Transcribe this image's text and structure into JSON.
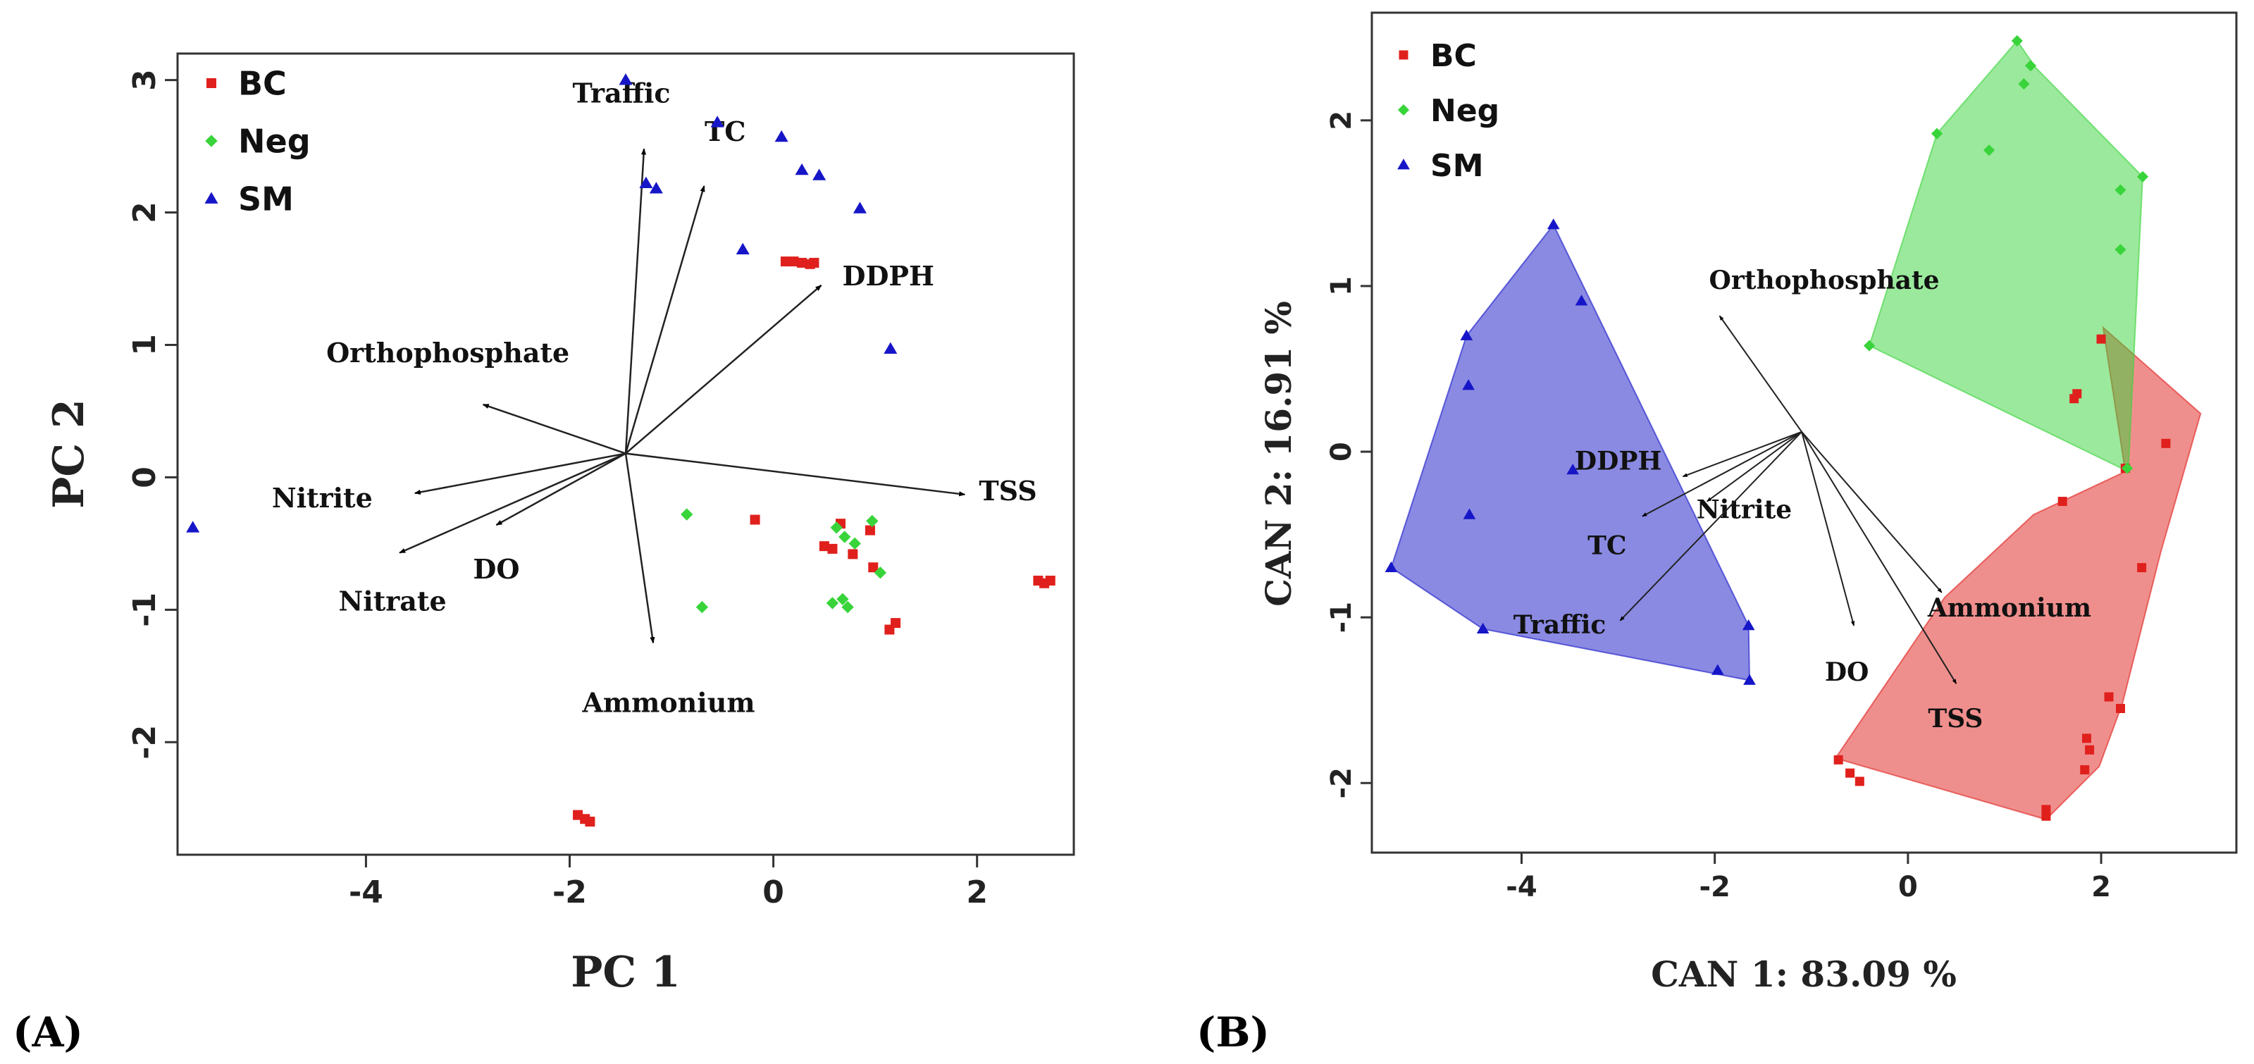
{
  "colors": {
    "BC": "#e0201c",
    "Neg": "#38d43a",
    "SM": "#1616c8"
  },
  "chart_data": [
    {
      "type": "scatter",
      "panel_label": "(A)",
      "xlabel": "PC 1",
      "ylabel": "PC 2",
      "xticks": [
        -4,
        -2,
        0,
        2
      ],
      "yticks": [
        -2,
        -1,
        0,
        1,
        2,
        3
      ],
      "xlim": [
        -5.85,
        2.95
      ],
      "ylim": [
        -2.85,
        3.2
      ],
      "grid": false,
      "legend": {
        "position": "top-left",
        "entries": [
          {
            "name": "BC",
            "marker": "square"
          },
          {
            "name": "Neg",
            "marker": "diamond"
          },
          {
            "name": "SM",
            "marker": "triangle"
          }
        ]
      },
      "series": [
        {
          "name": "BC",
          "points": [
            [
              0.12,
              1.63
            ],
            [
              0.2,
              1.63
            ],
            [
              0.28,
              1.62
            ],
            [
              0.36,
              1.61
            ],
            [
              0.4,
              1.62
            ],
            [
              -0.18,
              -0.32
            ],
            [
              0.5,
              -0.52
            ],
            [
              0.58,
              -0.54
            ],
            [
              0.66,
              -0.35
            ],
            [
              0.78,
              -0.58
            ],
            [
              0.95,
              -0.4
            ],
            [
              0.98,
              -0.68
            ],
            [
              1.2,
              -1.1
            ],
            [
              1.14,
              -1.15
            ],
            [
              2.6,
              -0.78
            ],
            [
              2.66,
              -0.8
            ],
            [
              2.72,
              -0.78
            ],
            [
              -1.92,
              -2.55
            ],
            [
              -1.85,
              -2.58
            ],
            [
              -1.8,
              -2.6
            ]
          ]
        },
        {
          "name": "Neg",
          "points": [
            [
              -0.85,
              -0.28
            ],
            [
              -0.7,
              -0.98
            ],
            [
              0.62,
              -0.38
            ],
            [
              0.7,
              -0.45
            ],
            [
              0.8,
              -0.5
            ],
            [
              0.97,
              -0.33
            ],
            [
              1.05,
              -0.72
            ],
            [
              0.58,
              -0.95
            ],
            [
              0.68,
              -0.92
            ],
            [
              0.73,
              -0.98
            ]
          ]
        },
        {
          "name": "SM",
          "points": [
            [
              -1.45,
              3.0
            ],
            [
              -0.55,
              2.68
            ],
            [
              0.08,
              2.57
            ],
            [
              -1.25,
              2.22
            ],
            [
              -1.15,
              2.18
            ],
            [
              0.28,
              2.32
            ],
            [
              0.45,
              2.28
            ],
            [
              0.85,
              2.03
            ],
            [
              -0.3,
              1.72
            ],
            [
              1.15,
              0.97
            ],
            [
              -5.7,
              -0.38
            ]
          ]
        }
      ],
      "loadings": [
        {
          "label": "Traffic",
          "x": -1.27,
          "y": 2.48
        },
        {
          "label": "TC",
          "x": -0.68,
          "y": 2.2
        },
        {
          "label": "DDPH",
          "x": 0.47,
          "y": 1.45
        },
        {
          "label": "Orthophosphate",
          "x": -2.85,
          "y": 0.55
        },
        {
          "label": "Nitrite",
          "x": -3.52,
          "y": -0.12
        },
        {
          "label": "Nitrate",
          "x": -3.67,
          "y": -0.57
        },
        {
          "label": "DO",
          "x": -2.72,
          "y": -0.36
        },
        {
          "label": "Ammonium",
          "x": -1.18,
          "y": -1.25
        },
        {
          "label": "TSS",
          "x": 1.88,
          "y": -0.13
        }
      ]
    },
    {
      "type": "scatter",
      "panel_label": "(B)",
      "xlabel": "CAN 1: 83.09 %",
      "ylabel": "CAN 2: 16.91 %",
      "xticks": [
        -4,
        -2,
        0,
        2
      ],
      "yticks": [
        -2,
        -1,
        0,
        1,
        2
      ],
      "xlim": [
        -5.55,
        3.4
      ],
      "ylim": [
        -2.42,
        2.65
      ],
      "grid": false,
      "legend": {
        "position": "top-left",
        "entries": [
          {
            "name": "BC",
            "marker": "square"
          },
          {
            "name": "Neg",
            "marker": "diamond"
          },
          {
            "name": "SM",
            "marker": "triangle"
          }
        ]
      },
      "series": [
        {
          "name": "BC",
          "hull": [
            [
              2.02,
              0.75
            ],
            [
              3.03,
              0.23
            ],
            [
              2.62,
              -0.6
            ],
            [
              2.22,
              -1.52
            ],
            [
              1.98,
              -1.9
            ],
            [
              1.43,
              -2.22
            ],
            [
              -0.75,
              -1.85
            ],
            [
              0.38,
              -0.88
            ],
            [
              1.3,
              -0.38
            ],
            [
              2.25,
              -0.12
            ]
          ],
          "points": [
            [
              1.75,
              0.35
            ],
            [
              2.25,
              -0.1
            ],
            [
              2.67,
              0.05
            ],
            [
              1.6,
              -0.3
            ],
            [
              2.42,
              -0.7
            ],
            [
              2.2,
              -1.55
            ],
            [
              2.08,
              -1.48
            ],
            [
              1.85,
              -1.73
            ],
            [
              1.88,
              -1.8
            ],
            [
              1.83,
              -1.92
            ],
            [
              1.43,
              -2.16
            ],
            [
              1.43,
              -2.2
            ],
            [
              -0.72,
              -1.86
            ],
            [
              -0.6,
              -1.94
            ],
            [
              -0.5,
              -1.99
            ],
            [
              1.72,
              0.32
            ],
            [
              2.0,
              0.68
            ]
          ]
        },
        {
          "name": "Neg",
          "points": [
            [
              1.13,
              2.48
            ],
            [
              1.27,
              2.33
            ],
            [
              1.2,
              2.22
            ],
            [
              0.3,
              1.92
            ],
            [
              0.84,
              1.82
            ],
            [
              2.43,
              1.66
            ],
            [
              2.2,
              1.58
            ],
            [
              2.2,
              1.22
            ],
            [
              -0.4,
              0.64
            ],
            [
              2.27,
              -0.1
            ]
          ],
          "hull": [
            [
              1.13,
              2.48
            ],
            [
              1.32,
              2.32
            ],
            [
              2.43,
              1.66
            ],
            [
              2.28,
              -0.12
            ],
            [
              -0.4,
              0.64
            ],
            [
              0.3,
              1.92
            ]
          ]
        },
        {
          "name": "SM",
          "points": [
            [
              -3.67,
              1.37
            ],
            [
              -3.38,
              0.91
            ],
            [
              -4.57,
              0.7
            ],
            [
              -4.55,
              0.4
            ],
            [
              -4.54,
              -0.38
            ],
            [
              -3.47,
              -0.11
            ],
            [
              -5.35,
              -0.7
            ],
            [
              -4.4,
              -1.07
            ],
            [
              -1.65,
              -1.05
            ],
            [
              -1.97,
              -1.32
            ],
            [
              -1.64,
              -1.38
            ]
          ],
          "hull": [
            [
              -3.67,
              1.37
            ],
            [
              -1.65,
              -1.05
            ],
            [
              -1.64,
              -1.38
            ],
            [
              -4.4,
              -1.07
            ],
            [
              -5.35,
              -0.7
            ],
            [
              -4.57,
              0.7
            ]
          ]
        }
      ],
      "loadings": [
        {
          "label": "Orthophosphate",
          "x": -1.95,
          "y": 0.82
        },
        {
          "label": "DDPH",
          "x": -2.33,
          "y": -0.15
        },
        {
          "label": "TC",
          "x": -2.75,
          "y": -0.39
        },
        {
          "label": "Nitrite",
          "x": -2.08,
          "y": -0.3
        },
        {
          "label": "Traffic",
          "x": -2.98,
          "y": -1.02
        },
        {
          "label": "DO",
          "x": -0.56,
          "y": -1.05
        },
        {
          "label": "Ammonium",
          "x": 0.35,
          "y": -0.85
        },
        {
          "label": "TSS",
          "x": 0.5,
          "y": -1.4
        }
      ],
      "loadings_origin": {
        "x": -1.1,
        "y": 0.12
      }
    }
  ]
}
